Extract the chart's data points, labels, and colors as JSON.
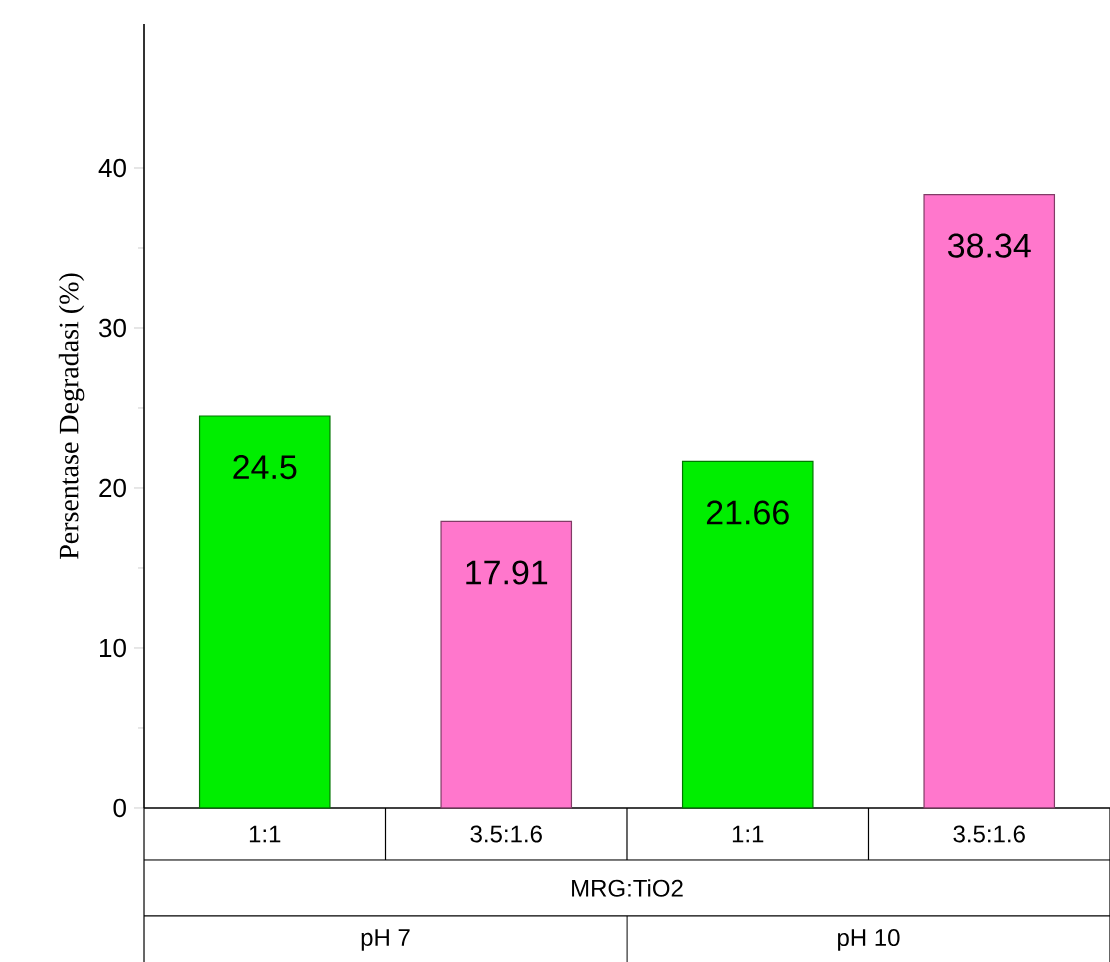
{
  "chart_data": {
    "type": "bar",
    "ylabel": "Persentase Degradasi (%)",
    "categories": [
      "1:1",
      "3.5:1.6",
      "1:1",
      "3.5:1.6"
    ],
    "values": [
      24.5,
      17.91,
      21.66,
      38.34
    ],
    "colors": [
      "#00ee00",
      "#ff77cc",
      "#00ee00",
      "#ff77cc"
    ],
    "data_labels": true,
    "ylim": [
      0,
      49
    ],
    "yticks": [
      0,
      10,
      20,
      30,
      40
    ],
    "annotations": [
      "MRG:TiO2",
      "pH 7",
      "pH 10"
    ]
  }
}
